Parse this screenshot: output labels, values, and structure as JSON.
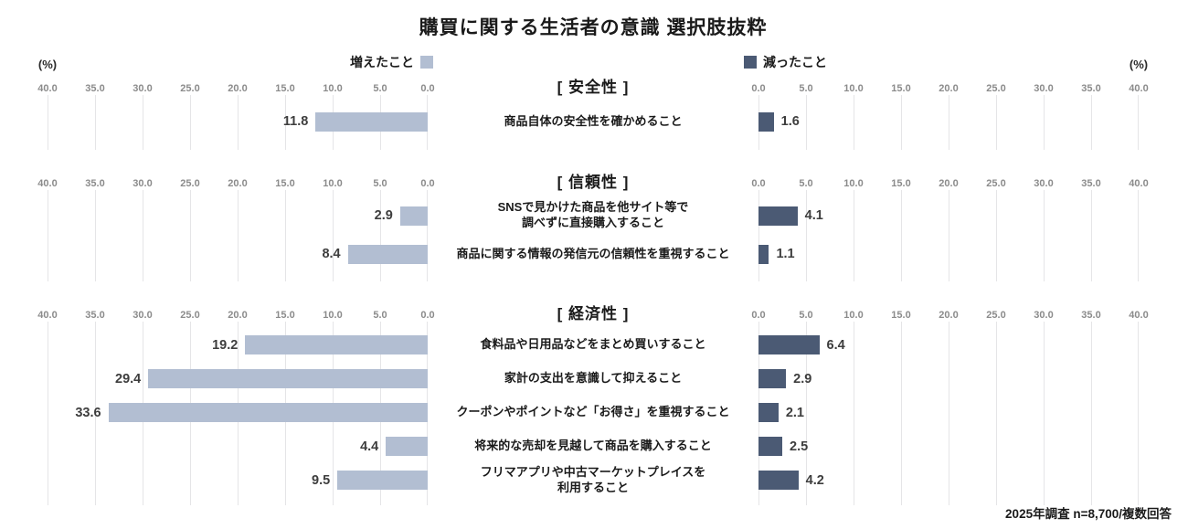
{
  "title": "購買に関する生活者の意識 選択肢抜粋",
  "legend": {
    "increased": "増えたこと",
    "decreased": "減ったこと"
  },
  "axis": {
    "unit_label": "(%)",
    "max": 40,
    "left_ticks": [
      "40.0",
      "35.0",
      "30.0",
      "25.0",
      "20.0",
      "15.0",
      "10.0",
      "5.0",
      "0.0"
    ],
    "right_ticks": [
      "0.0",
      "5.0",
      "10.0",
      "15.0",
      "20.0",
      "25.0",
      "30.0",
      "35.0",
      "40.0"
    ]
  },
  "colors": {
    "increased_bar": "#b2bed2",
    "decreased_bar": "#4b5a74",
    "gridline": "#e5e5e7"
  },
  "sections": [
    {
      "header": "[ 安全性 ]",
      "items": [
        {
          "label": "商品自体の安全性を確かめること",
          "increased": 11.8,
          "decreased": 1.6
        }
      ]
    },
    {
      "header": "[ 信頼性 ]",
      "items": [
        {
          "label": "SNSで見かけた商品を他サイト等で\n調べずに直接購入すること",
          "increased": 2.9,
          "decreased": 4.1
        },
        {
          "label": "商品に関する情報の発信元の信頼性を重視すること",
          "increased": 8.4,
          "decreased": 1.1
        }
      ]
    },
    {
      "header": "[ 経済性 ]",
      "items": [
        {
          "label": "食料品や日用品などをまとめ買いすること",
          "increased": 19.2,
          "decreased": 6.4
        },
        {
          "label": "家計の支出を意識して抑えること",
          "increased": 29.4,
          "decreased": 2.9
        },
        {
          "label": "クーポンやポイントなど「お得さ」を重視すること",
          "increased": 33.6,
          "decreased": 2.1
        },
        {
          "label": "将来的な売却を見越して商品を購入すること",
          "increased": 4.4,
          "decreased": 2.5
        },
        {
          "label": "フリマアプリや中古マーケットプレイスを\n利用すること",
          "increased": 9.5,
          "decreased": 4.2
        }
      ]
    }
  ],
  "footnote": "2025年調査 n=8,700/複数回答",
  "chart_data": {
    "type": "bar",
    "subtype": "diverging-horizontal",
    "title": "購買に関する生活者の意識 選択肢抜粋",
    "unit": "%",
    "axis_range": [
      0,
      40
    ],
    "axis_tick_step": 5,
    "grid": true,
    "legend_entries": [
      "増えたこと",
      "減ったこと"
    ],
    "legend_position": "top",
    "groups": [
      {
        "group": "安全性",
        "categories": [
          "商品自体の安全性を確かめること"
        ],
        "series": [
          {
            "name": "増えたこと",
            "values": [
              11.8
            ]
          },
          {
            "name": "減ったこと",
            "values": [
              1.6
            ]
          }
        ]
      },
      {
        "group": "信頼性",
        "categories": [
          "SNSで見かけた商品を他サイト等で調べずに直接購入すること",
          "商品に関する情報の発信元の信頼性を重視すること"
        ],
        "series": [
          {
            "name": "増えたこと",
            "values": [
              2.9,
              8.4
            ]
          },
          {
            "name": "減ったこと",
            "values": [
              4.1,
              1.1
            ]
          }
        ]
      },
      {
        "group": "経済性",
        "categories": [
          "食料品や日用品などをまとめ買いすること",
          "家計の支出を意識して抑えること",
          "クーポンやポイントなど「お得さ」を重視すること",
          "将来的な売却を見越して商品を購入すること",
          "フリマアプリや中古マーケットプレイスを利用すること"
        ],
        "series": [
          {
            "name": "増えたこと",
            "values": [
              19.2,
              29.4,
              33.6,
              4.4,
              9.5
            ]
          },
          {
            "name": "減ったこと",
            "values": [
              6.4,
              2.9,
              2.1,
              2.5,
              4.2
            ]
          }
        ]
      }
    ],
    "note": "2025年調査 n=8,700/複数回答"
  }
}
